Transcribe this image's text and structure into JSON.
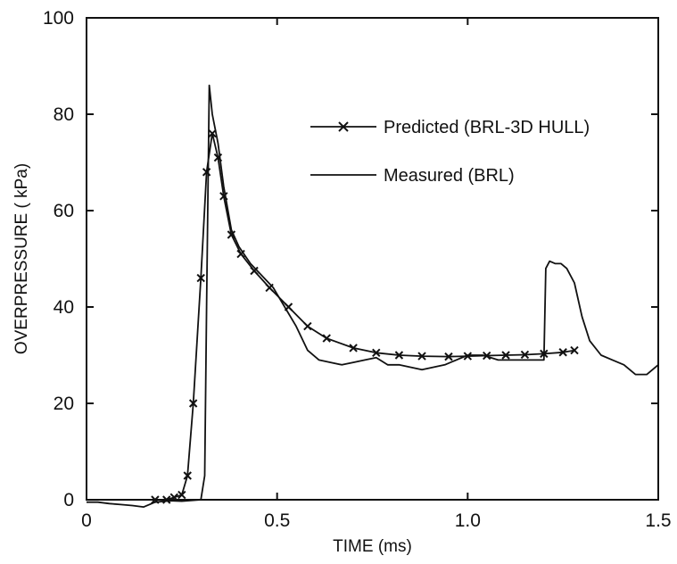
{
  "chart_data": {
    "type": "line",
    "xlabel": "TIME (ms)",
    "ylabel": "OVERPRESSURE ( kPa)",
    "xlim": [
      0,
      1.5
    ],
    "ylim": [
      0,
      100
    ],
    "x_ticks": [
      0,
      0.5,
      1.0,
      1.5
    ],
    "x_tick_labels": [
      "0",
      "0.5",
      "1.0",
      "1.5"
    ],
    "y_ticks": [
      0,
      20,
      40,
      60,
      80,
      100
    ],
    "y_tick_labels": [
      "0",
      "20",
      "40",
      "60",
      "80",
      "100"
    ],
    "grid": false,
    "legend_position": "top-right",
    "series": [
      {
        "name": "Predicted (BRL-3D HULL)",
        "marker": "x",
        "x": [
          0.0,
          0.18,
          0.21,
          0.23,
          0.25,
          0.265,
          0.28,
          0.3,
          0.315,
          0.33,
          0.345,
          0.36,
          0.38,
          0.405,
          0.44,
          0.48,
          0.53,
          0.58,
          0.63,
          0.7,
          0.76,
          0.82,
          0.88,
          0.95,
          1.0,
          1.05,
          1.1,
          1.15,
          1.2,
          1.25,
          1.28
        ],
        "y": [
          0,
          0,
          0,
          0.5,
          1,
          5,
          20,
          46,
          68,
          76,
          71,
          63,
          55,
          51,
          47.5,
          44,
          40,
          36,
          33.5,
          31.5,
          30.5,
          30,
          29.8,
          29.7,
          29.8,
          29.9,
          30,
          30.1,
          30.3,
          30.6,
          31
        ]
      },
      {
        "name": "Measured (BRL)",
        "marker": "none",
        "x": [
          0.0,
          0.03,
          0.06,
          0.09,
          0.12,
          0.15,
          0.18,
          0.22,
          0.25,
          0.3,
          0.31,
          0.315,
          0.322,
          0.33,
          0.345,
          0.36,
          0.38,
          0.4,
          0.43,
          0.46,
          0.49,
          0.52,
          0.55,
          0.58,
          0.61,
          0.64,
          0.67,
          0.7,
          0.73,
          0.76,
          0.79,
          0.82,
          0.85,
          0.88,
          0.91,
          0.94,
          0.97,
          1.0,
          1.04,
          1.08,
          1.12,
          1.16,
          1.2,
          1.205,
          1.215,
          1.23,
          1.245,
          1.26,
          1.28,
          1.3,
          1.32,
          1.35,
          1.38,
          1.41,
          1.44,
          1.47,
          1.5
        ],
        "y": [
          -0.5,
          -0.5,
          -0.8,
          -1,
          -1.2,
          -1.5,
          -0.5,
          -0.2,
          -0.3,
          0,
          5,
          40,
          86,
          80,
          74,
          65,
          56,
          52.5,
          49,
          46.5,
          44,
          40,
          36,
          31,
          29,
          28.5,
          28,
          28.5,
          29,
          29.5,
          28,
          28,
          27.5,
          27,
          27.5,
          28,
          29,
          30,
          30,
          29,
          29,
          29,
          29,
          48,
          49.5,
          49,
          49,
          48,
          45,
          38,
          33,
          30,
          29,
          28,
          26,
          26,
          28
        ]
      }
    ]
  }
}
